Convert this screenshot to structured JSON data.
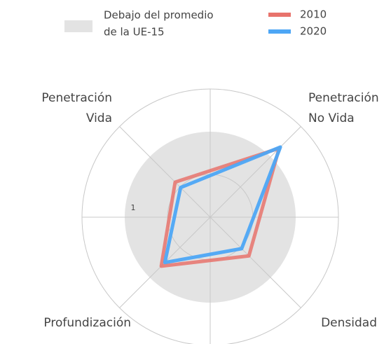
{
  "chart_data": {
    "type": "radar",
    "categories": [
      [
        "Penetración",
        "Vida"
      ],
      [
        "Penetración",
        "No Vida"
      ],
      [
        "Densidad"
      ],
      [
        "Profundización"
      ]
    ],
    "series": [
      {
        "name": "2010",
        "color": "#e8736c",
        "values": [
          0.58,
          1.14,
          0.64,
          0.81
        ]
      },
      {
        "name": "2020",
        "color": "#4da6f5",
        "values": [
          0.49,
          1.16,
          0.52,
          0.75
        ]
      }
    ],
    "band": {
      "name": [
        "Debajo del promedio",
        "de la UE-15"
      ],
      "max": 1,
      "color": "#e3e3e3"
    },
    "rlim": [
      0,
      1.5
    ],
    "rticks": [
      1
    ],
    "grid_rings": [
      0.5,
      1.5
    ]
  }
}
